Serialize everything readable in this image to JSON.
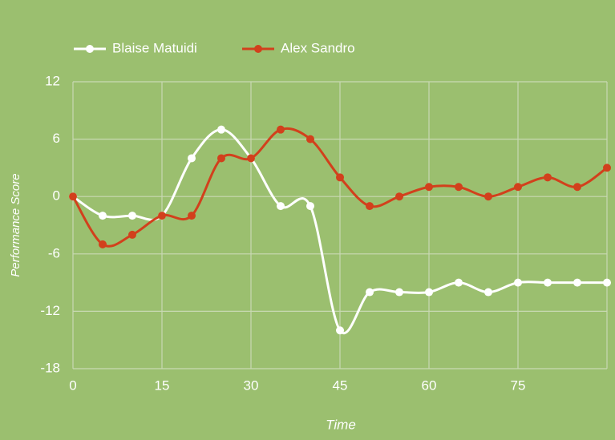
{
  "chart_data": {
    "type": "line",
    "x_label": "Time",
    "y_label": "Performance Score",
    "x": [
      0,
      5,
      10,
      15,
      20,
      25,
      30,
      35,
      40,
      45,
      50,
      55,
      60,
      65,
      70,
      75,
      80,
      85,
      90
    ],
    "series": [
      {
        "name": "Blaise Matuidi",
        "color": "#ffffff",
        "values": [
          0,
          -2,
          -2,
          -2,
          4,
          7,
          4,
          -1,
          -1,
          -14,
          -10,
          -10,
          -10,
          -9,
          -10,
          -9,
          -9,
          -9,
          -9
        ]
      },
      {
        "name": "Alex Sandro",
        "color": "#d2401c",
        "values": [
          0,
          -5,
          -4,
          -2,
          -2,
          4,
          4,
          7,
          6,
          2,
          -1,
          0,
          1,
          1,
          0,
          1,
          2,
          1,
          3
        ]
      }
    ],
    "xlim": [
      0,
      90
    ],
    "xticks": [
      0,
      15,
      30,
      45,
      60,
      75
    ],
    "ylim": [
      -18,
      12
    ],
    "yticks": [
      -18,
      -12,
      -6,
      0,
      6,
      12
    ],
    "grid": true,
    "legend": "top",
    "smooth": true
  }
}
